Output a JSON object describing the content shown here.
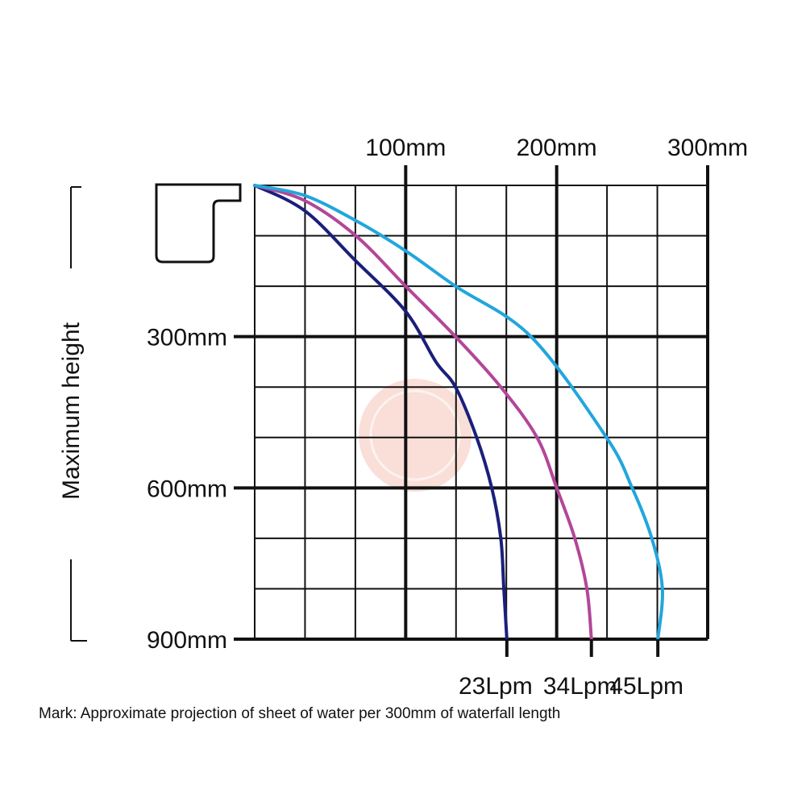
{
  "chart_data": {
    "type": "line",
    "title": "",
    "xlabel": "",
    "ylabel": "Maximum height",
    "x_unit": "mm",
    "y_unit": "mm",
    "xlim": [
      0,
      300
    ],
    "ylim": [
      0,
      900
    ],
    "y_inverted": true,
    "grid": true,
    "x_ticks": [
      {
        "value": 100,
        "label": "100mm"
      },
      {
        "value": 200,
        "label": "200mm"
      },
      {
        "value": 300,
        "label": "300mm"
      }
    ],
    "y_ticks": [
      {
        "value": 300,
        "label": "300mm"
      },
      {
        "value": 600,
        "label": "600mm"
      },
      {
        "value": 900,
        "label": "900mm"
      }
    ],
    "series": [
      {
        "name": "23Lpm",
        "color": "#1b1f7a",
        "points": [
          [
            0,
            0
          ],
          [
            33,
            50
          ],
          [
            67,
            150
          ],
          [
            100,
            250
          ],
          [
            120,
            350
          ],
          [
            133,
            400
          ],
          [
            147,
            500
          ],
          [
            157,
            600
          ],
          [
            163,
            700
          ],
          [
            165,
            800
          ],
          [
            167,
            900
          ]
        ]
      },
      {
        "name": "34Lpm",
        "color": "#b2479a",
        "points": [
          [
            0,
            0
          ],
          [
            33,
            30
          ],
          [
            67,
            100
          ],
          [
            100,
            200
          ],
          [
            133,
            300
          ],
          [
            163,
            400
          ],
          [
            187,
            500
          ],
          [
            200,
            600
          ],
          [
            212,
            700
          ],
          [
            220,
            800
          ],
          [
            223,
            900
          ]
        ]
      },
      {
        "name": "45Lpm",
        "color": "#22a6dc",
        "points": [
          [
            0,
            0
          ],
          [
            33,
            20
          ],
          [
            67,
            70
          ],
          [
            100,
            130
          ],
          [
            133,
            200
          ],
          [
            183,
            300
          ],
          [
            233,
            500
          ],
          [
            250,
            600
          ],
          [
            263,
            700
          ],
          [
            270,
            800
          ],
          [
            267,
            900
          ]
        ]
      }
    ],
    "annotation": "Mark: Approximate projection of sheet of water per 300mm of waterfall length"
  },
  "colors": {
    "grid": "#111111",
    "text": "#111111",
    "watermark": "#f4b5a8"
  },
  "icons": {
    "nozzle": "waterfall-spout-icon",
    "watermark": "watermark-seal-icon"
  }
}
